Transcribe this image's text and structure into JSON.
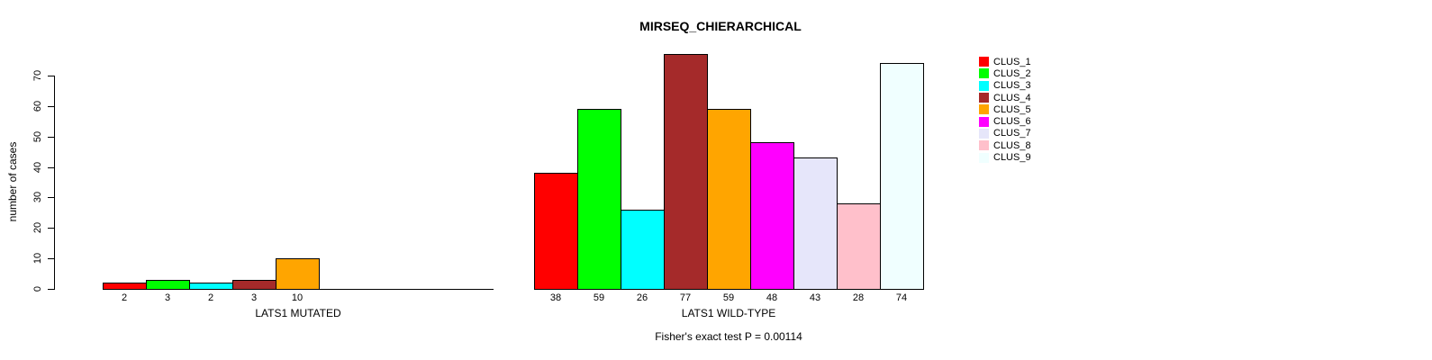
{
  "title": "MIRSEQ_CHIERARCHICAL",
  "footer": "Fisher's exact test P = 0.00114",
  "y_axis": {
    "label": "number of cases",
    "ticks": [
      0,
      10,
      20,
      30,
      40,
      50,
      60,
      70
    ]
  },
  "legend": {
    "position": "top-right",
    "items": [
      {
        "label": "CLUS_1",
        "color": "#FF0000"
      },
      {
        "label": "CLUS_2",
        "color": "#00FF00"
      },
      {
        "label": "CLUS_3",
        "color": "#00FFFF"
      },
      {
        "label": "CLUS_4",
        "color": "#A52A2A"
      },
      {
        "label": "CLUS_5",
        "color": "#FFA500"
      },
      {
        "label": "CLUS_6",
        "color": "#FF00FF"
      },
      {
        "label": "CLUS_7",
        "color": "#E6E6FA"
      },
      {
        "label": "CLUS_8",
        "color": "#FFC0CB"
      },
      {
        "label": "CLUS_9",
        "color": "#F0FFFF"
      }
    ]
  },
  "chart_data": [
    {
      "type": "bar",
      "xlabel": "LATS1 MUTATED",
      "categories": [
        "CLUS_1",
        "CLUS_2",
        "CLUS_3",
        "CLUS_4",
        "CLUS_5"
      ],
      "values": [
        2,
        3,
        2,
        3,
        10
      ],
      "bar_labels": [
        "2",
        "3",
        "2",
        "3",
        "10"
      ],
      "colors": [
        "#FF0000",
        "#00FF00",
        "#00FFFF",
        "#A52A2A",
        "#FFA500"
      ],
      "ylabel": "number of cases",
      "ylim": [
        0,
        70
      ],
      "grid": false
    },
    {
      "type": "bar",
      "xlabel": "LATS1 WILD-TYPE",
      "categories": [
        "CLUS_1",
        "CLUS_2",
        "CLUS_3",
        "CLUS_4",
        "CLUS_5",
        "CLUS_6",
        "CLUS_7",
        "CLUS_8",
        "CLUS_9"
      ],
      "values": [
        38,
        59,
        26,
        77,
        59,
        48,
        43,
        28,
        74
      ],
      "bar_labels": [
        "38",
        "59",
        "26",
        "77",
        "59",
        "48",
        "43",
        "28",
        "74"
      ],
      "colors": [
        "#FF0000",
        "#00FF00",
        "#00FFFF",
        "#A52A2A",
        "#FFA500",
        "#FF00FF",
        "#E6E6FA",
        "#FFC0CB",
        "#F0FFFF"
      ],
      "ylabel": "number of cases",
      "ylim": [
        0,
        70
      ],
      "grid": false
    }
  ]
}
